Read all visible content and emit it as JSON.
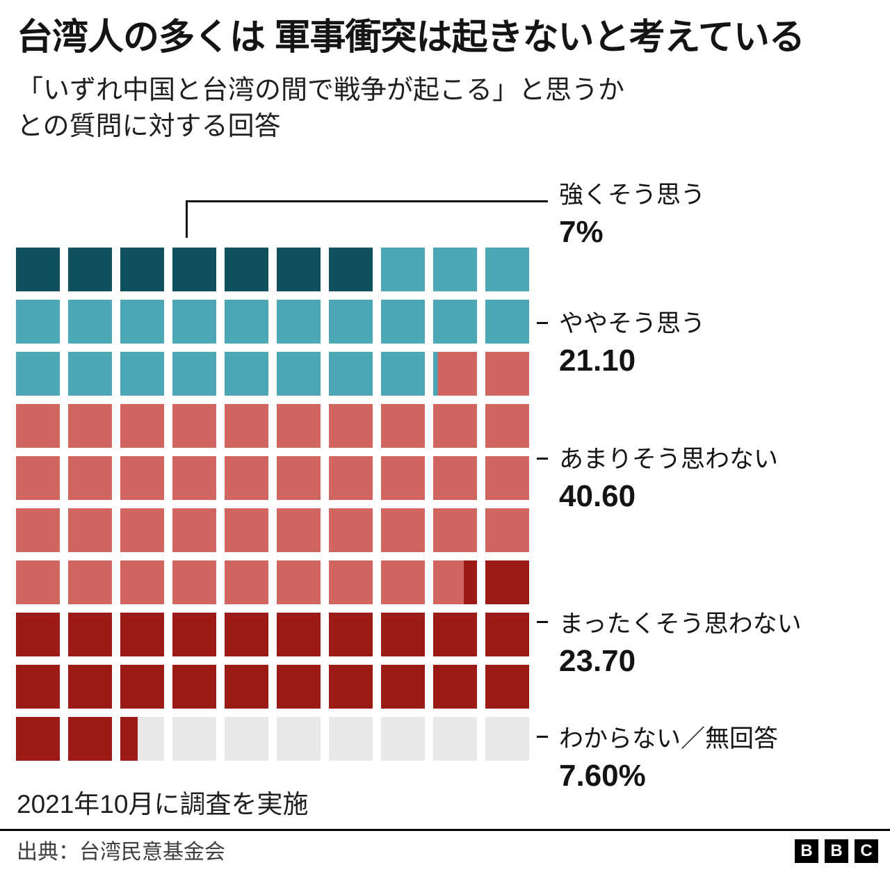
{
  "title": "台湾人の多くは 軍事衝突は起きないと考えている",
  "subtitle_lines": [
    "「いずれ中国と台湾の間で戦争が起こる」と思うか",
    "との質問に対する回答"
  ],
  "note": "2021年10月に調査を実施",
  "source": "出典：台湾民意基金会",
  "logo": {
    "letters": [
      "B",
      "B",
      "C"
    ]
  },
  "colors": {
    "strongly_agree": "#11505F",
    "somewhat_agree": "#4BA7B3",
    "somewhat_disagree": "#D0665F",
    "strongly_disagree": "#9C1B17",
    "dont_know": "#E9E9E7",
    "ink": "#141414"
  },
  "chart_data": {
    "type": "waffle",
    "title": "台湾人の多くは 軍事衝突は起きないと考えている",
    "subtitle": "「いずれ中国と台湾の間で戦争が起こる」と思うか との質問に対する回答",
    "grid": {
      "rows": 10,
      "cols": 10,
      "unit_percent": 1,
      "total_percent": 100
    },
    "legend_position": "right",
    "series": [
      {
        "name": "強くそう思う",
        "value": 7.0,
        "value_label": "7%",
        "color": "#11505F"
      },
      {
        "name": "ややそう思う",
        "value": 21.1,
        "value_label": "21.10",
        "color": "#4BA7B3"
      },
      {
        "name": "あまりそう思わない",
        "value": 40.6,
        "value_label": "40.60",
        "color": "#D0665F"
      },
      {
        "name": "まったくそう思わない",
        "value": 23.7,
        "value_label": "23.70",
        "color": "#9C1B17"
      },
      {
        "name": "わからない／無回答",
        "value": 7.6,
        "value_label": "7.60%",
        "color": "#E9E9E7"
      }
    ]
  }
}
